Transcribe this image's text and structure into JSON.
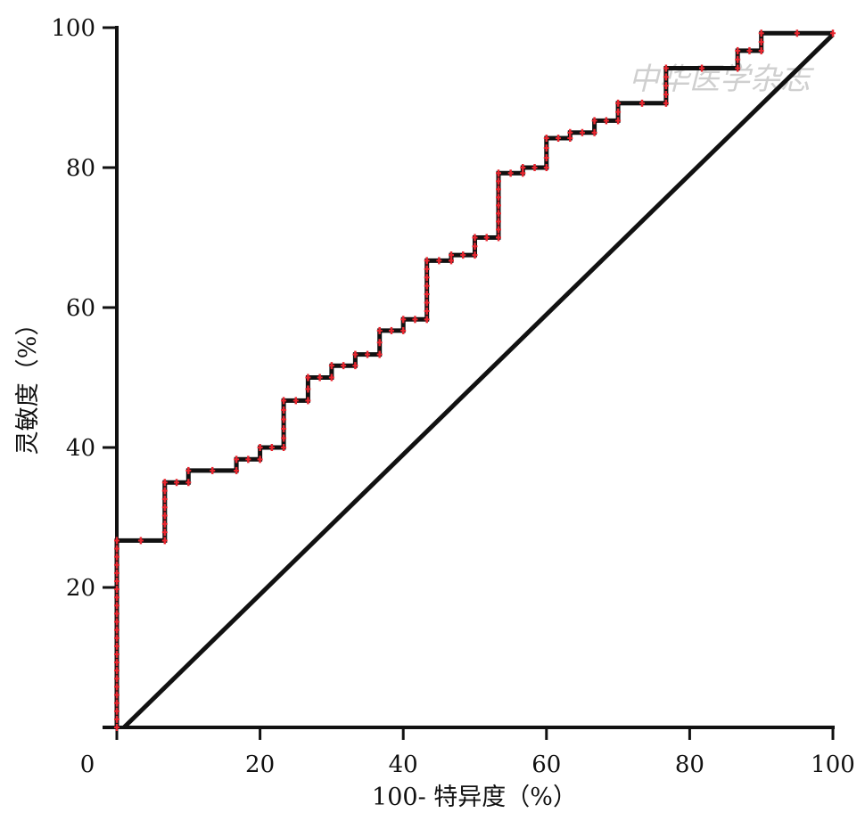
{
  "watermark": {
    "text": "中华医学杂志"
  },
  "chart_data": {
    "type": "line",
    "xlabel": "100- 特异度（%）",
    "ylabel": "灵敏度（%）",
    "xlim": [
      0,
      100
    ],
    "ylim": [
      0,
      100
    ],
    "x_ticks": [
      0,
      20,
      40,
      60,
      80,
      100
    ],
    "y_ticks": [
      20,
      40,
      60,
      80,
      100
    ],
    "x_tick_labels": [
      "0",
      "20",
      "40",
      "60",
      "80",
      "100"
    ],
    "y_tick_labels": [
      "20",
      "40",
      "60",
      "80",
      "100"
    ],
    "grid": false,
    "colors": {
      "curve": "#111111",
      "markers": "#e8262f",
      "reference": "#111111"
    },
    "series": [
      {
        "style": "step",
        "points": [
          [
            0,
            0
          ],
          [
            0,
            26.7
          ],
          [
            6.7,
            26.7
          ],
          [
            6.7,
            35.0
          ],
          [
            10.0,
            35.0
          ],
          [
            10.0,
            36.7
          ],
          [
            16.7,
            36.7
          ],
          [
            16.7,
            38.3
          ],
          [
            20.0,
            38.3
          ],
          [
            20.0,
            40.0
          ],
          [
            23.3,
            40.0
          ],
          [
            23.3,
            46.7
          ],
          [
            26.7,
            46.7
          ],
          [
            26.7,
            50.0
          ],
          [
            30.0,
            50.0
          ],
          [
            30.0,
            51.7
          ],
          [
            33.3,
            51.7
          ],
          [
            33.3,
            53.3
          ],
          [
            36.7,
            53.3
          ],
          [
            36.7,
            56.7
          ],
          [
            40.0,
            56.7
          ],
          [
            40.0,
            58.3
          ],
          [
            43.3,
            58.3
          ],
          [
            43.3,
            66.7
          ],
          [
            46.7,
            66.7
          ],
          [
            46.7,
            67.5
          ],
          [
            50.0,
            67.5
          ],
          [
            50.0,
            70.0
          ],
          [
            53.3,
            70.0
          ],
          [
            53.3,
            79.2
          ],
          [
            56.7,
            79.2
          ],
          [
            56.7,
            80.0
          ],
          [
            60.0,
            80.0
          ],
          [
            60.0,
            84.2
          ],
          [
            63.3,
            84.2
          ],
          [
            63.3,
            85.0
          ],
          [
            66.7,
            85.0
          ],
          [
            66.7,
            86.7
          ],
          [
            70.0,
            86.7
          ],
          [
            70.0,
            89.2
          ],
          [
            76.7,
            89.2
          ],
          [
            76.7,
            94.2
          ],
          [
            86.7,
            94.2
          ],
          [
            86.7,
            96.7
          ],
          [
            90.0,
            96.7
          ],
          [
            90.0,
            99.2
          ],
          [
            100,
            99.2
          ]
        ]
      },
      {
        "style": "reference-line",
        "points": [
          [
            1,
            0
          ],
          [
            100,
            99
          ]
        ]
      }
    ]
  }
}
